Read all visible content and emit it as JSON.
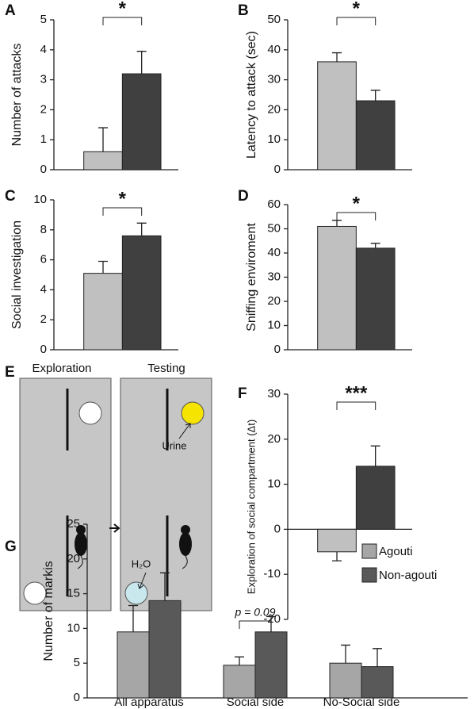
{
  "chart_data": [
    {
      "type": "bar",
      "panel": "A",
      "y_label": "Number of attacks",
      "annotation": "*",
      "categories": [
        null,
        null
      ],
      "values": [
        0.6,
        3.2
      ],
      "errors": [
        0.8,
        0.75
      ],
      "colors": [
        "#c0c0c0",
        "#404040"
      ],
      "ylim": [
        0,
        5
      ],
      "yticks": [
        0,
        1,
        2,
        3,
        4,
        5
      ]
    },
    {
      "type": "bar",
      "panel": "B",
      "y_label": "Latency to attack (sec)",
      "annotation": "*",
      "categories": [
        null,
        null
      ],
      "values": [
        36,
        23
      ],
      "errors": [
        3,
        3.5
      ],
      "colors": [
        "#c0c0c0",
        "#404040"
      ],
      "ylim": [
        0,
        50
      ],
      "yticks": [
        0,
        10,
        20,
        30,
        40,
        50
      ]
    },
    {
      "type": "bar",
      "panel": "C",
      "y_label": "Social investigation",
      "annotation": "*",
      "categories": [
        null,
        null
      ],
      "values": [
        5.1,
        7.6
      ],
      "errors": [
        0.8,
        0.85
      ],
      "colors": [
        "#c0c0c0",
        "#404040"
      ],
      "ylim": [
        0,
        10
      ],
      "yticks": [
        0,
        2,
        4,
        6,
        8,
        10
      ]
    },
    {
      "type": "bar",
      "panel": "D",
      "y_label": "Sniffing enviroment",
      "annotation": "*",
      "categories": [
        null,
        null
      ],
      "values": [
        51,
        42
      ],
      "errors": [
        2.5,
        2
      ],
      "colors": [
        "#c0c0c0",
        "#404040"
      ],
      "ylim": [
        0,
        60
      ],
      "yticks": [
        0,
        10,
        20,
        30,
        40,
        50,
        60
      ]
    },
    {
      "type": "bar",
      "panel": "F",
      "y_label": "Exploration of social compartment (Δt)",
      "annotation": "***",
      "categories": [
        null,
        null
      ],
      "values": [
        -5,
        14
      ],
      "errors": [
        2,
        4.5
      ],
      "colors": [
        "#c0c0c0",
        "#404040"
      ],
      "ylim": [
        -20,
        30
      ],
      "yticks": [
        -20,
        -10,
        0,
        10,
        20,
        30
      ]
    },
    {
      "type": "grouped-bar",
      "panel": "G",
      "y_label": "Number of markis",
      "annotation": "p = 0.09",
      "categories": [
        "All apparatus",
        "Social side",
        "No-Social side"
      ],
      "series": [
        {
          "name": "Agouti",
          "color": "#a6a6a6",
          "values": [
            9.5,
            4.7,
            5
          ],
          "errors": [
            3.8,
            1.2,
            2.6
          ]
        },
        {
          "name": "Non-agouti",
          "color": "#595959",
          "values": [
            14,
            9.5,
            4.5
          ],
          "errors": [
            4,
            2.2,
            2.6
          ]
        }
      ],
      "ylim": [
        0,
        25
      ],
      "yticks": [
        0,
        5,
        10,
        15,
        20,
        25
      ]
    }
  ],
  "diagram": {
    "panel": "E",
    "left_title": "Exploration",
    "right_title": "Testing",
    "urine": "Urine",
    "water": "H₂O"
  }
}
